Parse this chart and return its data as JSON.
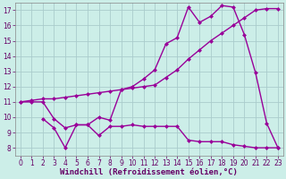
{
  "background_color": "#cceee8",
  "grid_color": "#aacccc",
  "line_color": "#990099",
  "marker": "D",
  "markersize": 2.5,
  "linewidth": 1.0,
  "xlabel": "Windchill (Refroidissement éolien,°C)",
  "xlabel_fontsize": 6.5,
  "ylabel_ticks": [
    8,
    9,
    10,
    11,
    12,
    13,
    14,
    15,
    16,
    17
  ],
  "xlabel_ticks": [
    0,
    1,
    2,
    3,
    4,
    5,
    6,
    7,
    8,
    9,
    10,
    11,
    12,
    13,
    14,
    15,
    16,
    17,
    18,
    19,
    20,
    21,
    22,
    23
  ],
  "xlim": [
    -0.5,
    23.5
  ],
  "ylim": [
    7.5,
    17.5
  ],
  "line1_x": [
    0,
    1,
    2,
    3,
    4,
    5,
    6,
    7,
    8,
    9,
    10,
    11,
    12,
    13,
    14,
    15,
    16,
    17,
    18,
    19,
    20,
    21,
    22,
    23
  ],
  "line1_y": [
    11.0,
    11.0,
    11.0,
    9.9,
    9.3,
    9.5,
    9.5,
    8.8,
    9.4,
    9.4,
    9.5,
    9.4,
    9.4,
    9.4,
    9.4,
    8.5,
    8.4,
    8.4,
    8.4,
    8.2,
    8.1,
    8.0,
    8.0,
    8.0
  ],
  "line2_x": [
    0,
    1,
    2,
    3,
    4,
    5,
    6,
    7,
    8,
    9,
    10,
    11,
    12,
    13,
    14,
    15,
    16,
    17,
    18,
    19,
    20,
    21,
    22,
    23
  ],
  "line2_y": [
    11.0,
    11.1,
    11.2,
    11.2,
    11.3,
    11.4,
    11.5,
    11.6,
    11.7,
    11.8,
    11.9,
    12.0,
    12.1,
    12.6,
    13.1,
    13.8,
    14.4,
    15.0,
    15.5,
    16.0,
    16.5,
    17.0,
    17.1,
    17.1
  ],
  "line3_x": [
    2,
    3,
    4,
    5,
    6,
    7,
    8,
    9,
    10,
    11,
    12,
    13,
    14,
    15,
    16,
    17,
    18,
    19,
    20,
    21,
    22,
    23
  ],
  "line3_y": [
    9.9,
    9.3,
    8.0,
    9.5,
    9.5,
    10.0,
    9.8,
    11.8,
    12.0,
    12.5,
    13.1,
    14.8,
    15.2,
    17.2,
    16.2,
    16.6,
    17.3,
    17.2,
    15.4,
    12.9,
    9.6,
    8.0
  ],
  "tick_fontsize": 5.5,
  "tick_color": "#660066",
  "spine_color": "#888888"
}
